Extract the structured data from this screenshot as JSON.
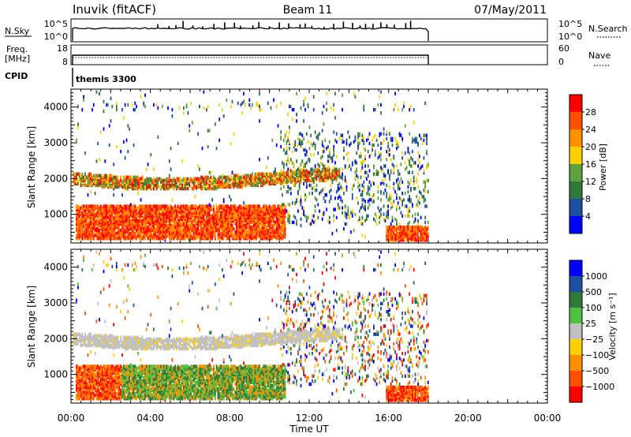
{
  "header": {
    "station": "Inuvik (fitACF)",
    "beam": "Beam 11",
    "date": "07/May/2011"
  },
  "top_panels": {
    "nsky_label": "N.Sky",
    "nsky_ticks": [
      "10^5",
      "10^0"
    ],
    "nsearch_label": "N.Search",
    "nsearch_ticks": [
      "10^5",
      "10^0"
    ],
    "freq_label_1": "Freq.",
    "freq_label_2": "[MHz]",
    "freq_ticks": [
      "18",
      "8"
    ],
    "nave_label": "Nave",
    "nave_ticks": [
      "60",
      "0"
    ],
    "cpid_label": "CPID",
    "cpid_value": "themis 3300"
  },
  "colors": {
    "power": [
      "#0000ff",
      "#1f4fa0",
      "#2f7a3a",
      "#5fa040",
      "#ffd000",
      "#ff9000",
      "#ff5000",
      "#ff0000"
    ],
    "velocity": [
      "#ff0000",
      "#ff5000",
      "#ff9000",
      "#ffd000",
      "#c0c0c0",
      "#50c040",
      "#2f7a3a",
      "#1f4fa0",
      "#0000ff"
    ]
  },
  "chart_data": [
    {
      "type": "heatmap",
      "name": "power",
      "ylabel": "Slant Range [km]",
      "yticks": [
        "1000",
        "2000",
        "3000",
        "4000"
      ],
      "ylim": [
        200,
        4500
      ],
      "xlim": [
        0,
        24
      ],
      "cbar_label": "Power [dB]",
      "cbar_ticks": [
        "4",
        "8",
        "12",
        "16",
        "20",
        "24",
        "28"
      ],
      "data_end_hour": 18
    },
    {
      "type": "heatmap",
      "name": "velocity",
      "ylabel": "Slant Range [km]",
      "yticks": [
        "1000",
        "2000",
        "3000",
        "4000"
      ],
      "ylim": [
        200,
        4500
      ],
      "xlim": [
        0,
        24
      ],
      "cbar_label": "Velocity [m s⁻¹]",
      "cbar_ticks": [
        "1000",
        "500",
        "100",
        "25",
        "−25",
        "−100",
        "−500",
        "−1000"
      ],
      "data_end_hour": 18
    }
  ],
  "xaxis": {
    "ticks": [
      "00:00",
      "04:00",
      "08:00",
      "12:00",
      "16:00",
      "20:00",
      "00:00"
    ],
    "label": "Time UT"
  }
}
